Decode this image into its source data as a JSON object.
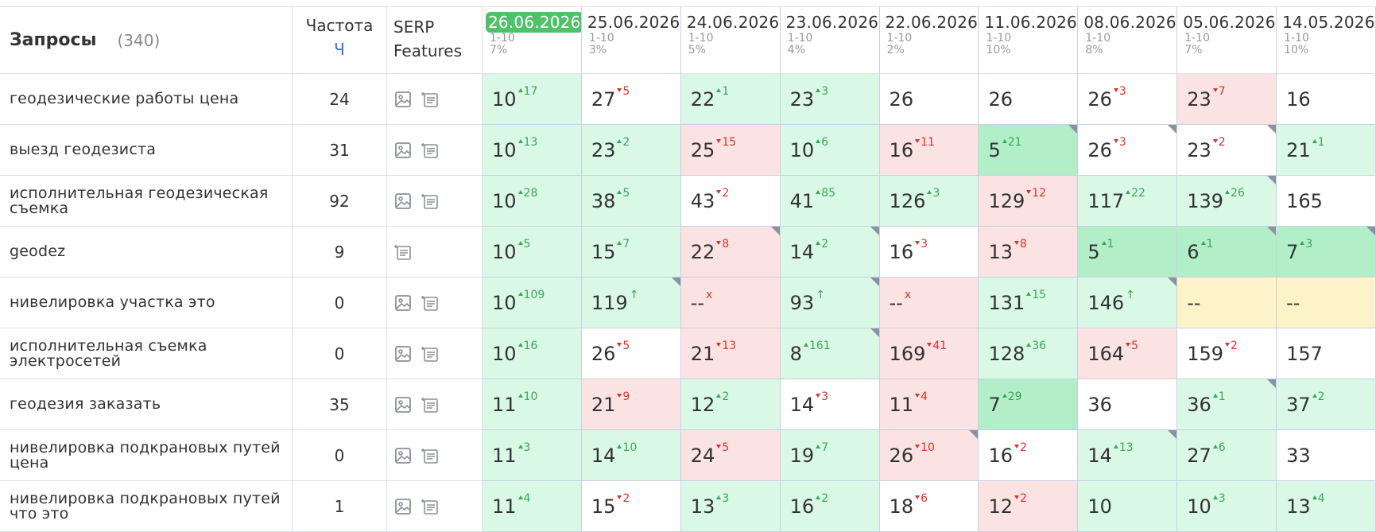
{
  "header": {
    "title": "Запросы",
    "count": "(340)",
    "frequency": "Частота",
    "frequency_type": "Ч",
    "serp": "SERP Features",
    "dates": [
      {
        "date": "26.06.2026",
        "range": "1-10",
        "share": "7%"
      },
      {
        "date": "25.06.2026",
        "range": "1-10",
        "share": "3%"
      },
      {
        "date": "24.06.2026",
        "range": "1-10",
        "share": "5%"
      },
      {
        "date": "23.06.2026",
        "range": "1-10",
        "share": "4%"
      },
      {
        "date": "22.06.2026",
        "range": "1-10",
        "share": "2%"
      },
      {
        "date": "11.06.2026",
        "range": "1-10",
        "share": "10%"
      },
      {
        "date": "08.06.2026",
        "range": "1-10",
        "share": "8%"
      },
      {
        "date": "05.06.2026",
        "range": "1-10",
        "share": "7%"
      },
      {
        "date": "14.05.2026",
        "range": "1-10",
        "share": "10%"
      }
    ]
  },
  "rows": [
    {
      "query": "геодезические работы цена",
      "frequency": "24",
      "serp": [
        "image",
        "snippet"
      ],
      "cells": [
        {
          "pos": "10",
          "delta": "17",
          "dir": "up",
          "bg": "green"
        },
        {
          "pos": "27",
          "delta": "5",
          "dir": "down",
          "bg": "white"
        },
        {
          "pos": "22",
          "delta": "1",
          "dir": "up",
          "bg": "green"
        },
        {
          "pos": "23",
          "delta": "3",
          "dir": "up",
          "bg": "green"
        },
        {
          "pos": "26",
          "bg": "white"
        },
        {
          "pos": "26",
          "bg": "white"
        },
        {
          "pos": "26",
          "delta": "3",
          "dir": "down",
          "bg": "white"
        },
        {
          "pos": "23",
          "delta": "7",
          "dir": "down",
          "bg": "pink"
        },
        {
          "pos": "16",
          "bg": "white"
        }
      ]
    },
    {
      "query": "выезд геодезиста",
      "frequency": "31",
      "serp": [
        "image",
        "snippet"
      ],
      "cells": [
        {
          "pos": "10",
          "delta": "13",
          "dir": "up",
          "bg": "green"
        },
        {
          "pos": "23",
          "delta": "2",
          "dir": "up",
          "bg": "green"
        },
        {
          "pos": "25",
          "delta": "15",
          "dir": "down",
          "bg": "pink"
        },
        {
          "pos": "10",
          "delta": "6",
          "dir": "up",
          "bg": "green"
        },
        {
          "pos": "16",
          "delta": "11",
          "dir": "down",
          "bg": "pink"
        },
        {
          "pos": "5",
          "delta": "21",
          "dir": "up",
          "bg": "top",
          "corner": true
        },
        {
          "pos": "26",
          "delta": "3",
          "dir": "down",
          "bg": "white",
          "corner": true
        },
        {
          "pos": "23",
          "delta": "2",
          "dir": "down",
          "bg": "white",
          "corner": true
        },
        {
          "pos": "21",
          "delta": "1",
          "dir": "up",
          "bg": "green"
        }
      ]
    },
    {
      "query": "исполнительная геодезическая съемка",
      "frequency": "92",
      "serp": [
        "image",
        "snippet"
      ],
      "cells": [
        {
          "pos": "10",
          "delta": "28",
          "dir": "up",
          "bg": "green"
        },
        {
          "pos": "38",
          "delta": "5",
          "dir": "up",
          "bg": "green"
        },
        {
          "pos": "43",
          "delta": "2",
          "dir": "down",
          "bg": "white"
        },
        {
          "pos": "41",
          "delta": "85",
          "dir": "up",
          "bg": "green"
        },
        {
          "pos": "126",
          "delta": "3",
          "dir": "up",
          "bg": "green"
        },
        {
          "pos": "129",
          "delta": "12",
          "dir": "down",
          "bg": "pink"
        },
        {
          "pos": "117",
          "delta": "22",
          "dir": "up",
          "bg": "green"
        },
        {
          "pos": "139",
          "delta": "26",
          "dir": "up",
          "bg": "green",
          "corner": true
        },
        {
          "pos": "165",
          "bg": "white"
        }
      ]
    },
    {
      "query": "geodez",
      "frequency": "9",
      "serp": [
        "snippet"
      ],
      "cells": [
        {
          "pos": "10",
          "delta": "5",
          "dir": "up",
          "bg": "green"
        },
        {
          "pos": "15",
          "delta": "7",
          "dir": "up",
          "bg": "green"
        },
        {
          "pos": "22",
          "delta": "8",
          "dir": "down",
          "bg": "pink",
          "corner": true
        },
        {
          "pos": "14",
          "delta": "2",
          "dir": "up",
          "bg": "green",
          "corner": true
        },
        {
          "pos": "16",
          "delta": "3",
          "dir": "down",
          "bg": "white"
        },
        {
          "pos": "13",
          "delta": "8",
          "dir": "down",
          "bg": "pink"
        },
        {
          "pos": "5",
          "delta": "1",
          "dir": "up",
          "bg": "top"
        },
        {
          "pos": "6",
          "delta": "1",
          "dir": "up",
          "bg": "top",
          "corner": true
        },
        {
          "pos": "7",
          "delta": "3",
          "dir": "up",
          "bg": "top",
          "corner": true
        }
      ]
    },
    {
      "query": "нивелировка участка это",
      "frequency": "0",
      "serp": [
        "image",
        "snippet"
      ],
      "cells": [
        {
          "pos": "10",
          "delta": "109",
          "dir": "up",
          "bg": "green"
        },
        {
          "pos": "119",
          "delta": "↑",
          "dir": "new",
          "bg": "green",
          "corner": true
        },
        {
          "pos": "--",
          "delta": "x",
          "dir": "lost",
          "bg": "pink"
        },
        {
          "pos": "93",
          "delta": "↑",
          "dir": "new",
          "bg": "green",
          "corner": true
        },
        {
          "pos": "--",
          "delta": "x",
          "dir": "lost",
          "bg": "pink"
        },
        {
          "pos": "131",
          "delta": "15",
          "dir": "up",
          "bg": "green"
        },
        {
          "pos": "146",
          "delta": "↑",
          "dir": "new",
          "bg": "green",
          "corner": true
        },
        {
          "pos": "--",
          "bg": "yellow"
        },
        {
          "pos": "--",
          "bg": "yellow"
        }
      ]
    },
    {
      "query": "исполнительная съемка электросетей",
      "frequency": "0",
      "serp": [
        "image",
        "snippet"
      ],
      "cells": [
        {
          "pos": "10",
          "delta": "16",
          "dir": "up",
          "bg": "green"
        },
        {
          "pos": "26",
          "delta": "5",
          "dir": "down",
          "bg": "white"
        },
        {
          "pos": "21",
          "delta": "13",
          "dir": "down",
          "bg": "pink"
        },
        {
          "pos": "8",
          "delta": "161",
          "dir": "up",
          "bg": "green",
          "corner": true
        },
        {
          "pos": "169",
          "delta": "41",
          "dir": "down",
          "bg": "pink"
        },
        {
          "pos": "128",
          "delta": "36",
          "dir": "up",
          "bg": "green"
        },
        {
          "pos": "164",
          "delta": "5",
          "dir": "down",
          "bg": "pink"
        },
        {
          "pos": "159",
          "delta": "2",
          "dir": "down",
          "bg": "white"
        },
        {
          "pos": "157",
          "bg": "white"
        }
      ]
    },
    {
      "query": "геодезия заказать",
      "frequency": "35",
      "serp": [
        "image",
        "snippet"
      ],
      "cells": [
        {
          "pos": "11",
          "delta": "10",
          "dir": "up",
          "bg": "green"
        },
        {
          "pos": "21",
          "delta": "9",
          "dir": "down",
          "bg": "pink"
        },
        {
          "pos": "12",
          "delta": "2",
          "dir": "up",
          "bg": "green"
        },
        {
          "pos": "14",
          "delta": "3",
          "dir": "down",
          "bg": "white"
        },
        {
          "pos": "11",
          "delta": "4",
          "dir": "down",
          "bg": "pink"
        },
        {
          "pos": "7",
          "delta": "29",
          "dir": "up",
          "bg": "top"
        },
        {
          "pos": "36",
          "bg": "white"
        },
        {
          "pos": "36",
          "delta": "1",
          "dir": "up",
          "bg": "green",
          "corner": true
        },
        {
          "pos": "37",
          "delta": "2",
          "dir": "up",
          "bg": "green"
        }
      ]
    },
    {
      "query": "нивелировка подкрановых путей цена",
      "frequency": "0",
      "serp": [
        "image",
        "snippet"
      ],
      "cells": [
        {
          "pos": "11",
          "delta": "3",
          "dir": "up",
          "bg": "green"
        },
        {
          "pos": "14",
          "delta": "10",
          "dir": "up",
          "bg": "green"
        },
        {
          "pos": "24",
          "delta": "5",
          "dir": "down",
          "bg": "pink"
        },
        {
          "pos": "19",
          "delta": "7",
          "dir": "up",
          "bg": "green"
        },
        {
          "pos": "26",
          "delta": "10",
          "dir": "down",
          "bg": "pink",
          "corner": true
        },
        {
          "pos": "16",
          "delta": "2",
          "dir": "down",
          "bg": "white"
        },
        {
          "pos": "14",
          "delta": "13",
          "dir": "up",
          "bg": "green",
          "corner": true
        },
        {
          "pos": "27",
          "delta": "6",
          "dir": "up",
          "bg": "green"
        },
        {
          "pos": "33",
          "bg": "white"
        }
      ]
    },
    {
      "query": "нивелировка подкрановых путей что это",
      "frequency": "1",
      "serp": [
        "image",
        "snippet"
      ],
      "cells": [
        {
          "pos": "11",
          "delta": "4",
          "dir": "up",
          "bg": "green"
        },
        {
          "pos": "15",
          "delta": "2",
          "dir": "down",
          "bg": "white"
        },
        {
          "pos": "13",
          "delta": "3",
          "dir": "up",
          "bg": "green"
        },
        {
          "pos": "16",
          "delta": "2",
          "dir": "up",
          "bg": "green"
        },
        {
          "pos": "18",
          "delta": "6",
          "dir": "down",
          "bg": "white"
        },
        {
          "pos": "12",
          "delta": "2",
          "dir": "down",
          "bg": "pink"
        },
        {
          "pos": "10",
          "bg": "green"
        },
        {
          "pos": "10",
          "delta": "3",
          "dir": "up",
          "bg": "green"
        },
        {
          "pos": "13",
          "delta": "4",
          "dir": "up",
          "bg": "green"
        }
      ]
    }
  ]
}
